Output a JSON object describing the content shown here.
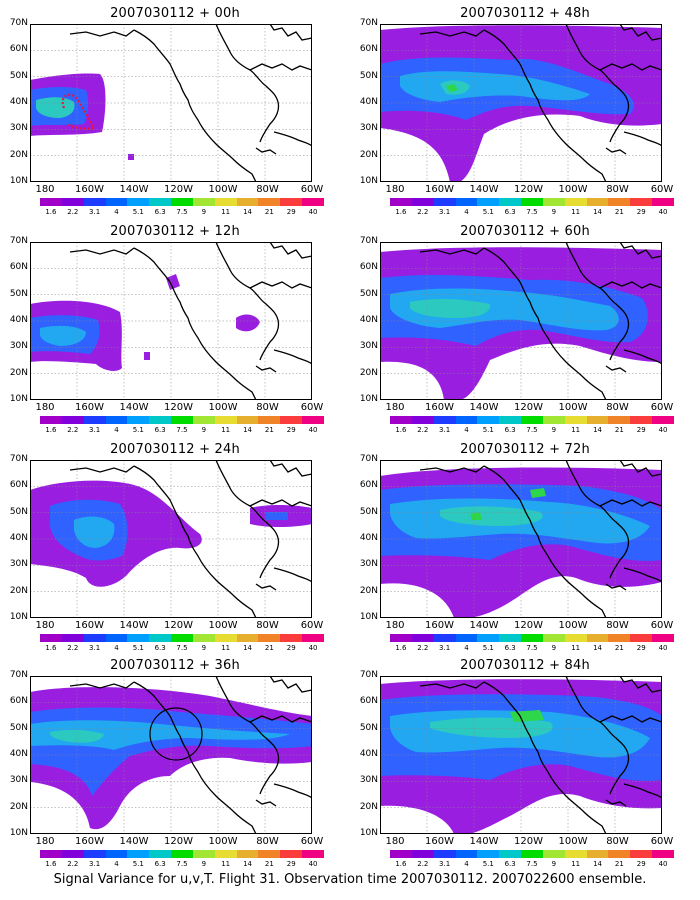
{
  "footer": "Signal Variance for u,v,T. Flight 31. Observation time 2007030112. 2007022600 ensemble.",
  "lat_ticks": [
    "70N",
    "60N",
    "50N",
    "40N",
    "30N",
    "20N",
    "10N"
  ],
  "lon_ticks": [
    "180",
    "160W",
    "140W",
    "120W",
    "100W",
    "80W",
    "60W"
  ],
  "colorbar": {
    "labels": [
      "1.6",
      "2.2",
      "3.1",
      "4",
      "5.1",
      "6.3",
      "7.5",
      "9",
      "11",
      "14",
      "21",
      "29",
      "40"
    ],
    "colors": [
      "#a000c8",
      "#8200dc",
      "#1e3cff",
      "#0064ff",
      "#00a0ff",
      "#00c8c8",
      "#00dc00",
      "#a0e632",
      "#e6dc32",
      "#e6af2d",
      "#f08228",
      "#fa3c3c",
      "#f00082"
    ]
  },
  "panels": [
    {
      "title": "2007030112 + 00h"
    },
    {
      "title": "2007030112 + 48h"
    },
    {
      "title": "2007030112 + 12h"
    },
    {
      "title": "2007030112 + 60h"
    },
    {
      "title": "2007030112 + 24h"
    },
    {
      "title": "2007030112 + 72h"
    },
    {
      "title": "2007030112 + 36h"
    },
    {
      "title": "2007030112 + 84h"
    }
  ],
  "palette": {
    "purple": "#9a1ee0",
    "violet": "#7e2cf0",
    "blue": "#2f62ff",
    "lightblue": "#22a8f0",
    "cyan": "#2cc9c0",
    "green": "#2ed64a",
    "coast": "#000000",
    "flight_track": "#e8143c"
  }
}
